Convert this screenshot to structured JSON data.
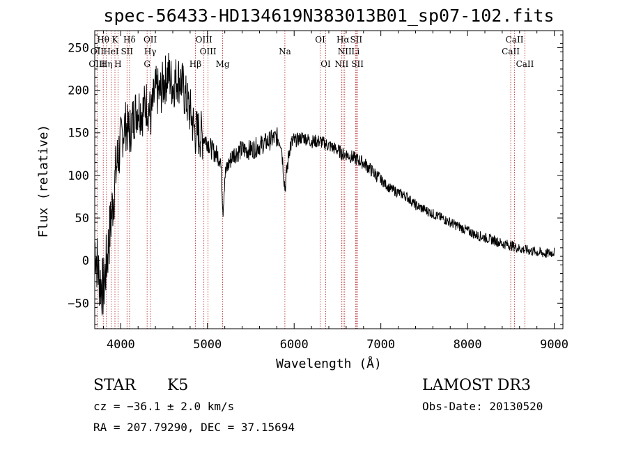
{
  "chart_data": {
    "type": "line",
    "title": "spec-56433-HD134619N383013B01_sp07-102.fits",
    "xlabel": "Wavelength (Å)",
    "ylabel": "Flux (relative)",
    "xlim": [
      3700,
      9100
    ],
    "ylim": [
      -80,
      270
    ],
    "xticks": [
      4000,
      5000,
      6000,
      7000,
      8000,
      9000
    ],
    "yticks": [
      -50,
      0,
      50,
      100,
      150,
      200,
      250
    ],
    "series": [
      {
        "name": "spectrum",
        "x": [
          3700,
          3750,
          3800,
          3850,
          3900,
          3950,
          4000,
          4050,
          4100,
          4150,
          4200,
          4250,
          4300,
          4350,
          4400,
          4450,
          4500,
          4550,
          4600,
          4650,
          4700,
          4750,
          4800,
          4860,
          4900,
          4950,
          5000,
          5050,
          5100,
          5150,
          5180,
          5200,
          5250,
          5300,
          5400,
          5500,
          5600,
          5700,
          5800,
          5850,
          5893,
          5950,
          6000,
          6100,
          6200,
          6300,
          6400,
          6500,
          6563,
          6600,
          6700,
          6800,
          6900,
          7000,
          7100,
          7200,
          7300,
          7400,
          7500,
          7600,
          7700,
          7800,
          7900,
          8000,
          8100,
          8200,
          8300,
          8400,
          8500,
          8600,
          8700,
          8800,
          8900,
          9000
        ],
        "y": [
          20,
          -20,
          -35,
          10,
          60,
          110,
          140,
          160,
          150,
          170,
          180,
          175,
          185,
          170,
          200,
          195,
          210,
          220,
          205,
          215,
          210,
          190,
          175,
          150,
          150,
          145,
          140,
          130,
          125,
          120,
          60,
          100,
          115,
          125,
          130,
          130,
          135,
          140,
          145,
          140,
          85,
          135,
          140,
          145,
          140,
          140,
          135,
          130,
          125,
          125,
          120,
          115,
          105,
          95,
          85,
          80,
          75,
          65,
          60,
          55,
          50,
          45,
          40,
          35,
          30,
          27,
          24,
          20,
          18,
          14,
          12,
          10,
          8,
          10
        ]
      }
    ],
    "lines": [
      {
        "label": "Hθ",
        "wavelength": 3798,
        "row": 1
      },
      {
        "label": "K",
        "wavelength": 3933,
        "row": 1
      },
      {
        "label": "Hδ",
        "wavelength": 4101,
        "row": 1
      },
      {
        "label": "OII",
        "wavelength": 4340,
        "row": 1
      },
      {
        "label": "OIII",
        "wavelength": 4959,
        "row": 1
      },
      {
        "label": "OI",
        "wavelength": 6300,
        "row": 1
      },
      {
        "label": "Hα",
        "wavelength": 6563,
        "row": 1
      },
      {
        "label": "SII",
        "wavelength": 6716,
        "row": 1
      },
      {
        "label": "CaII",
        "wavelength": 8542,
        "row": 1
      },
      {
        "label": "OII",
        "wavelength": 3727,
        "row": 2
      },
      {
        "label": "HeI",
        "wavelength": 3889,
        "row": 2
      },
      {
        "label": "SII",
        "wavelength": 4072,
        "row": 2
      },
      {
        "label": "Hγ",
        "wavelength": 4340,
        "row": 2
      },
      {
        "label": "OIII",
        "wavelength": 5007,
        "row": 2
      },
      {
        "label": "Na",
        "wavelength": 5893,
        "row": 2
      },
      {
        "label": "NII",
        "wavelength": 6583,
        "row": 2
      },
      {
        "label": "Li",
        "wavelength": 6708,
        "row": 2
      },
      {
        "label": "CaII",
        "wavelength": 8498,
        "row": 2
      },
      {
        "label": "OIII",
        "wavelength": 3727,
        "row": 3
      },
      {
        "label": "Hη",
        "wavelength": 3835,
        "row": 3
      },
      {
        "label": "H",
        "wavelength": 3968,
        "row": 3
      },
      {
        "label": "G",
        "wavelength": 4304,
        "row": 3
      },
      {
        "label": "Hβ",
        "wavelength": 4861,
        "row": 3
      },
      {
        "label": "Mg",
        "wavelength": 5175,
        "row": 3
      },
      {
        "label": "OI",
        "wavelength": 6364,
        "row": 3
      },
      {
        "label": "NII",
        "wavelength": 6548,
        "row": 3
      },
      {
        "label": "SII",
        "wavelength": 6731,
        "row": 3
      },
      {
        "label": "CaII",
        "wavelength": 8662,
        "row": 3
      }
    ]
  },
  "info": {
    "object_class": "STAR",
    "subclass": "K5",
    "survey": "LAMOST DR3",
    "redshift_text": "cz = −36.1 ± 2.0 km/s",
    "obs_date": "Obs-Date: 20130520",
    "coords": "RA = 207.79290, DEC =  37.15694"
  }
}
